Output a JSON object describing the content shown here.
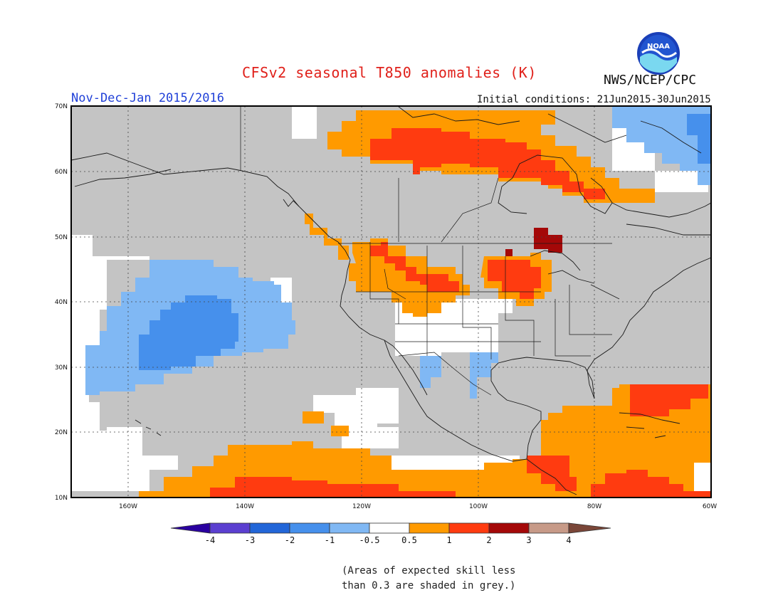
{
  "title": "CFSv2 seasonal T850 anomalies (K)",
  "organization": "NWS/NCEP/CPC",
  "logo_text": "NOAA",
  "period": "Nov-Dec-Jan 2015/2016",
  "initial_conditions": "Initial conditions: 21Jun2015-30Jun2015",
  "lat_labels": [
    "70N",
    "60N",
    "50N",
    "40N",
    "30N",
    "20N",
    "10N"
  ],
  "lon_labels": [
    "160W",
    "140W",
    "120W",
    "100W",
    "80W",
    "60W"
  ],
  "colorbar": {
    "tick_labels": [
      "-4",
      "-3",
      "-2",
      "-1",
      "-0.5",
      "0.5",
      "1",
      "2",
      "3",
      "4"
    ],
    "colors": [
      "#2a00a0",
      "#5b3fd0",
      "#2266d8",
      "#4690ec",
      "#80b8f4",
      "#ffffff",
      "#ff9a00",
      "#ff3b10",
      "#a40808",
      "#c79a88",
      "#7a4638"
    ]
  },
  "skill_shading_color": "#c4c4c4",
  "footnote": [
    "(Areas of expected skill less",
    "than 0.3 are shaded in grey.)"
  ]
}
